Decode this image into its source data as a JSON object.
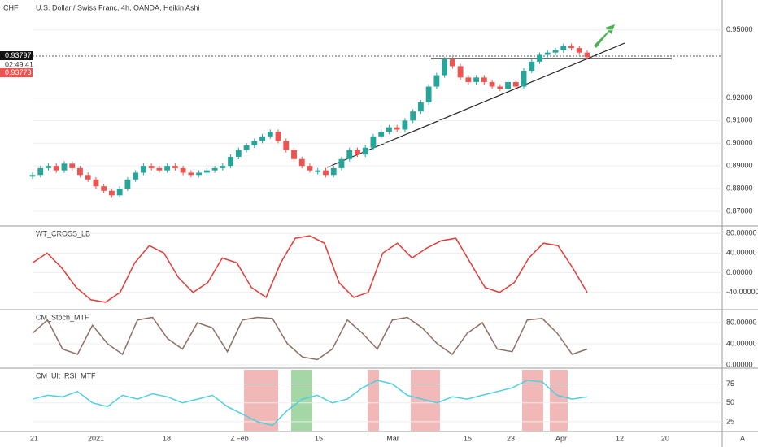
{
  "header": {
    "title": "U.S. Dollar / Swiss Franc, 4h, OANDA, Heikin Ashi",
    "symbol": "CHF",
    "corner": "A",
    "last_price": "0.93797",
    "countdown": "02:49:41",
    "bid": "0.93773"
  },
  "x_labels": [
    "21",
    "2021",
    "18",
    "Z",
    "Feb",
    "15",
    "Mar",
    "15",
    "23",
    "Apr",
    "12",
    "20"
  ],
  "chart_data": [
    {
      "type": "candlestick",
      "title": "U.S. Dollar / Swiss Franc, 4h, OANDA, Heikin Ashi",
      "up_color": "#26a69a",
      "down_color": "#ef5350",
      "ylim": [
        0.8635,
        0.9632
      ],
      "yticks": [
        {
          "value": 0.87,
          "label": "0.87000"
        },
        {
          "value": 0.88,
          "label": "0.88000"
        },
        {
          "value": 0.89,
          "label": "0.89000"
        },
        {
          "value": 0.9,
          "label": "0.90000"
        },
        {
          "value": 0.91,
          "label": "0.91000"
        },
        {
          "value": 0.92,
          "label": "0.92000"
        },
        {
          "value": 0.95,
          "label": "0.95000"
        }
      ],
      "values": [
        0.886,
        0.889,
        0.89,
        0.888,
        0.891,
        0.889,
        0.886,
        0.884,
        0.881,
        0.879,
        0.877,
        0.88,
        0.884,
        0.887,
        0.89,
        0.889,
        0.888,
        0.89,
        0.889,
        0.887,
        0.886,
        0.887,
        0.888,
        0.889,
        0.89,
        0.894,
        0.897,
        0.899,
        0.901,
        0.903,
        0.905,
        0.901,
        0.897,
        0.893,
        0.89,
        0.888,
        0.888,
        0.886,
        0.889,
        0.893,
        0.897,
        0.895,
        0.898,
        0.903,
        0.905,
        0.907,
        0.906,
        0.91,
        0.914,
        0.918,
        0.925,
        0.93,
        0.937,
        0.934,
        0.929,
        0.927,
        0.929,
        0.927,
        0.925,
        0.924,
        0.927,
        0.925,
        0.932,
        0.936,
        0.939,
        0.94,
        0.941,
        0.943,
        0.942,
        0.94,
        0.938
      ]
    },
    {
      "type": "line",
      "title": "WT_CROSS_LB",
      "color": "#e53935",
      "ylim": [
        -71.7,
        91.7
      ],
      "yticks": [
        {
          "value": 80,
          "label": "80.00000"
        },
        {
          "value": 40,
          "label": "40.00000"
        },
        {
          "value": 0,
          "label": "0.00000"
        },
        {
          "value": -40,
          "label": "-40.00000"
        }
      ],
      "values": [
        20,
        40,
        10,
        -30,
        -55,
        -60,
        -40,
        20,
        55,
        40,
        -10,
        -40,
        -20,
        30,
        20,
        -30,
        -50,
        20,
        70,
        75,
        60,
        -20,
        -50,
        -40,
        40,
        60,
        30,
        50,
        65,
        70,
        20,
        -30,
        -40,
        -20,
        30,
        60,
        55,
        10,
        -40
      ]
    },
    {
      "type": "line",
      "title": "CM_Stoch_MTF",
      "color": "#8d6e63",
      "ylim": [
        -4.6,
        103
      ],
      "yticks": [
        {
          "value": 80,
          "label": "80.00000"
        },
        {
          "value": 40,
          "label": "40.00000"
        },
        {
          "value": 0,
          "label": "0.00000"
        }
      ],
      "values": [
        60,
        85,
        30,
        20,
        75,
        40,
        20,
        85,
        90,
        50,
        30,
        80,
        70,
        25,
        85,
        90,
        88,
        40,
        15,
        10,
        30,
        85,
        60,
        30,
        85,
        90,
        70,
        40,
        20,
        60,
        80,
        30,
        25,
        85,
        88,
        60,
        20,
        30
      ]
    },
    {
      "type": "line",
      "title": "CM_Ult_RSI_MTF",
      "color": "#4dd0e1",
      "ylim": [
        13,
        95
      ],
      "yticks": [
        75,
        50,
        25
      ],
      "values": [
        55,
        60,
        58,
        65,
        50,
        45,
        60,
        55,
        62,
        58,
        50,
        55,
        60,
        45,
        35,
        25,
        20,
        40,
        55,
        60,
        50,
        55,
        70,
        80,
        75,
        60,
        55,
        50,
        58,
        55,
        60,
        65,
        70,
        80,
        78,
        60,
        55,
        58
      ]
    }
  ]
}
